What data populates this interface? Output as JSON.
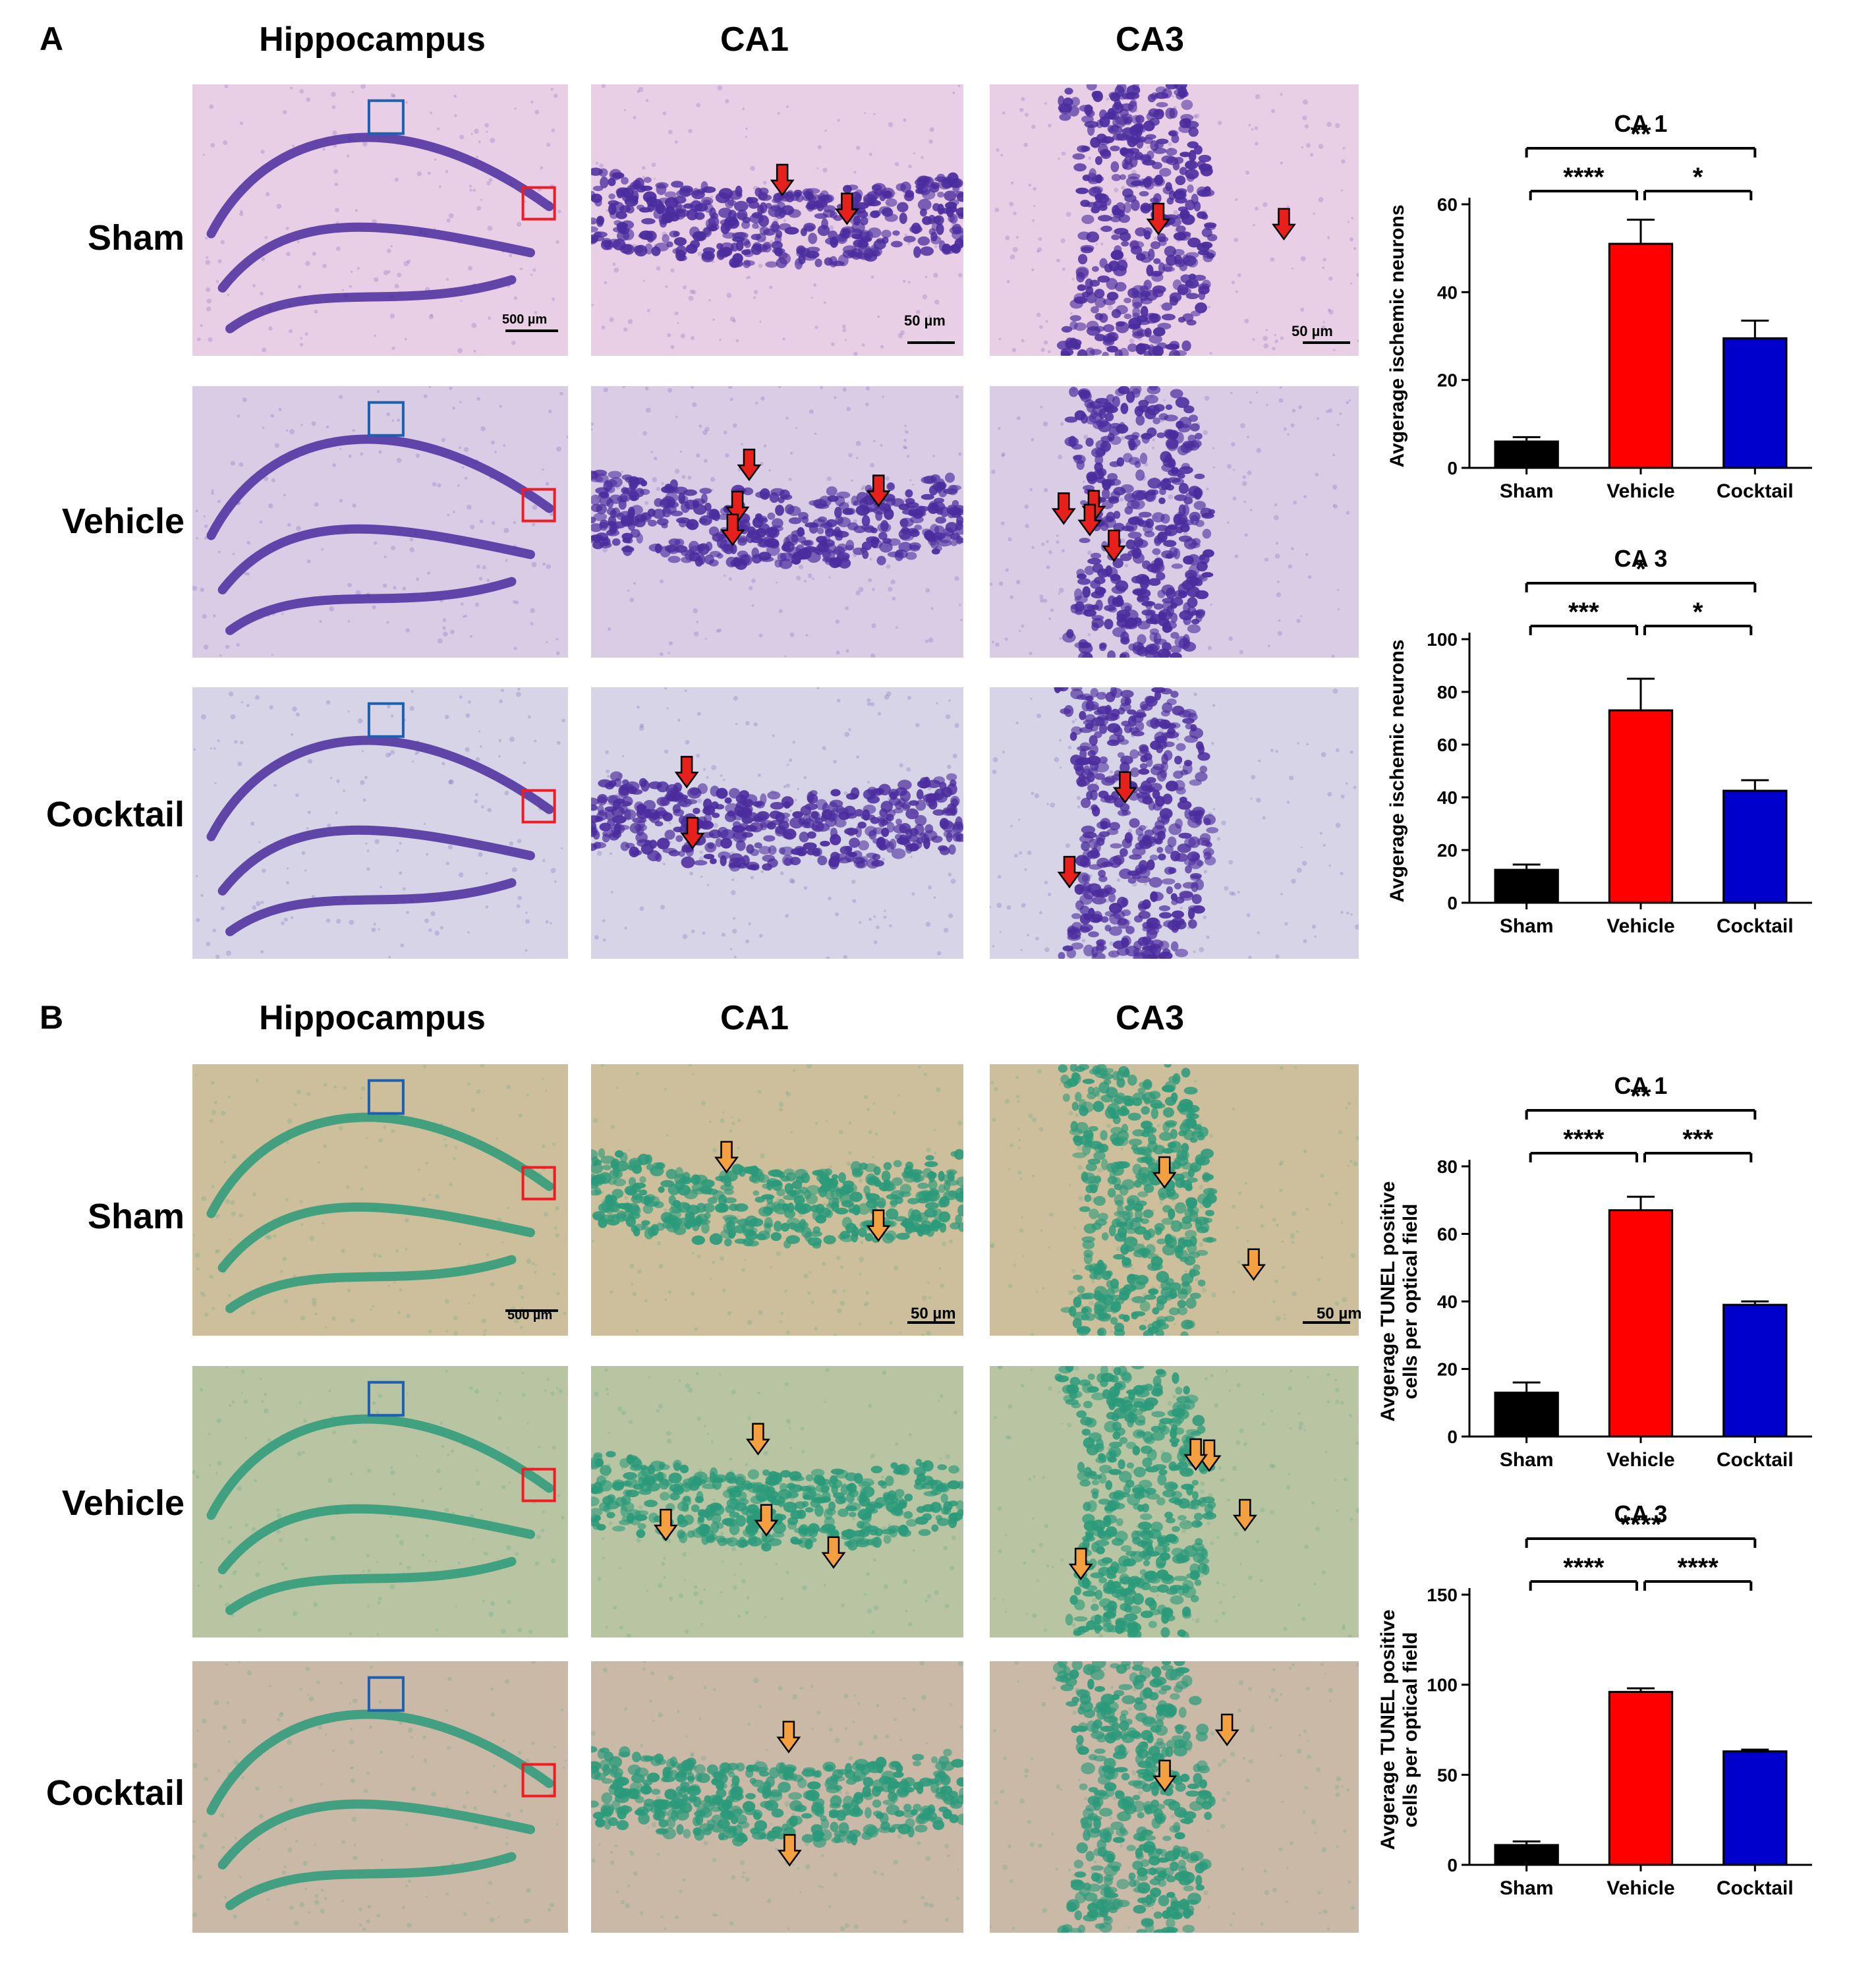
{
  "panels": [
    {
      "letter": "A",
      "stain": "nissl",
      "columns": [
        "Hippocampus",
        "CA1",
        "CA3"
      ],
      "rows": [
        {
          "label": "Sham",
          "scales": [
            "500 µm",
            "50 µm",
            "50 µm"
          ]
        },
        {
          "label": "Vehicle",
          "scales": [
            "",
            "",
            ""
          ]
        },
        {
          "label": "Cocktail",
          "scales": [
            "",
            "",
            ""
          ]
        }
      ],
      "colors": {
        "bg1": "#e8cfe6",
        "bg2": "#d9cde6",
        "bg3": "#d6d4e6",
        "cell": "#4b2c9e",
        "arrow": "#e8201c"
      }
    },
    {
      "letter": "B",
      "stain": "tunel",
      "columns": [
        "Hippocampus",
        "CA1",
        "CA3"
      ],
      "rows": [
        {
          "label": "Sham",
          "scales": [
            "500 µm",
            "50 µm",
            "50 µm"
          ]
        },
        {
          "label": "Vehicle",
          "scales": [
            "",
            "",
            ""
          ]
        },
        {
          "label": "Cocktail",
          "scales": [
            "",
            "",
            ""
          ]
        }
      ],
      "colors": {
        "bg1": "#cdbf9b",
        "bg2": "#b9c5a2",
        "bg3": "#c9b9a6",
        "cell": "#2a9a7a",
        "arrow": "#f5a040"
      }
    }
  ],
  "chart_data": [
    {
      "type": "bar",
      "title": "CA 1",
      "ylabel": "Avgerage ischemic neurons",
      "categories": [
        "Sham",
        "Vehicle",
        "Cocktail"
      ],
      "values": [
        6,
        51,
        29.5
      ],
      "errors": [
        1,
        5.5,
        4
      ],
      "ylim": [
        0,
        60
      ],
      "yticks": [
        0,
        20,
        40,
        60
      ],
      "colors": [
        "#000000",
        "#ff0000",
        "#0000cc"
      ],
      "significance": [
        {
          "from": 0,
          "to": 2,
          "label": "**",
          "level": 2
        },
        {
          "from": 0,
          "to": 1,
          "label": "****",
          "level": 1
        },
        {
          "from": 1,
          "to": 2,
          "label": "*",
          "level": 1
        }
      ]
    },
    {
      "type": "bar",
      "title": "CA 3",
      "ylabel": "Avgerage ischemic neurons",
      "categories": [
        "Sham",
        "Vehicle",
        "Cocktail"
      ],
      "values": [
        12.5,
        73,
        42.5
      ],
      "errors": [
        2,
        12,
        4
      ],
      "ylim": [
        0,
        100
      ],
      "yticks": [
        0,
        20,
        40,
        60,
        80,
        100
      ],
      "colors": [
        "#000000",
        "#ff0000",
        "#0000cc"
      ],
      "significance": [
        {
          "from": 0,
          "to": 2,
          "label": "*",
          "level": 2
        },
        {
          "from": 0,
          "to": 1,
          "label": "***",
          "level": 1
        },
        {
          "from": 1,
          "to": 2,
          "label": "*",
          "level": 1
        }
      ]
    },
    {
      "type": "bar",
      "title": "CA 1",
      "ylabel": "Avgerage TUNEL positive cells per optical field",
      "categories": [
        "Sham",
        "Vehicle",
        "Cocktail"
      ],
      "values": [
        13,
        67,
        39
      ],
      "errors": [
        3,
        4,
        1
      ],
      "ylim": [
        0,
        80
      ],
      "yticks": [
        0,
        20,
        40,
        60,
        80
      ],
      "colors": [
        "#000000",
        "#ff0000",
        "#0000cc"
      ],
      "significance": [
        {
          "from": 0,
          "to": 2,
          "label": "**",
          "level": 2
        },
        {
          "from": 0,
          "to": 1,
          "label": "****",
          "level": 1
        },
        {
          "from": 1,
          "to": 2,
          "label": "***",
          "level": 1
        }
      ]
    },
    {
      "type": "bar",
      "title": "CA 3",
      "ylabel": "Avgerage TUNEL positive cells per optical field",
      "categories": [
        "Sham",
        "Vehicle",
        "Cocktail"
      ],
      "values": [
        11,
        96,
        63
      ],
      "errors": [
        2,
        2,
        1
      ],
      "ylim": [
        0,
        150
      ],
      "yticks": [
        0,
        50,
        100,
        150
      ],
      "colors": [
        "#000000",
        "#ff0000",
        "#0000cc"
      ],
      "significance": [
        {
          "from": 0,
          "to": 2,
          "label": "****",
          "level": 2
        },
        {
          "from": 0,
          "to": 1,
          "label": "****",
          "level": 1
        },
        {
          "from": 1,
          "to": 2,
          "label": "****",
          "level": 1
        }
      ]
    }
  ]
}
